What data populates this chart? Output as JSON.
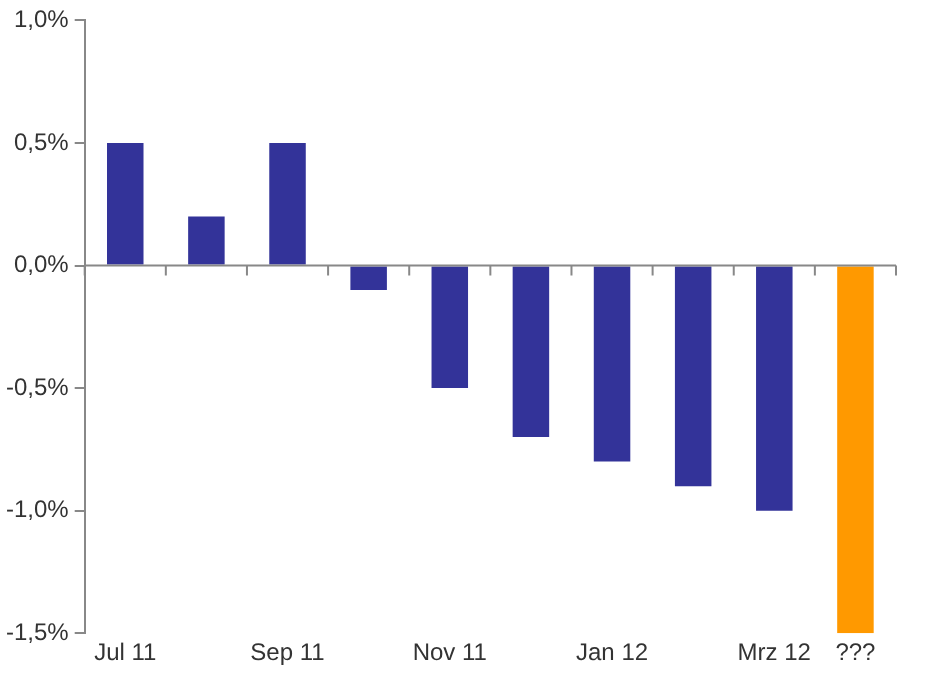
{
  "chart_data": {
    "type": "bar",
    "categories": [
      "Jul 11",
      null,
      "Sep 11",
      null,
      "Nov 11",
      null,
      "Jan 12",
      null,
      "Mrz 12",
      "???"
    ],
    "values": [
      0.5,
      0.2,
      0.5,
      -0.1,
      -0.5,
      -0.7,
      -0.8,
      -0.9,
      -1.0,
      -1.5
    ],
    "colors": [
      "#333399",
      "#333399",
      "#333399",
      "#333399",
      "#333399",
      "#333399",
      "#333399",
      "#333399",
      "#333399",
      "#ff9900"
    ],
    "ylim": [
      -1.5,
      1.0
    ],
    "yticks": [
      {
        "value": -1.5,
        "label": "-1,5%"
      },
      {
        "value": -1.0,
        "label": "-1,0%"
      },
      {
        "value": -0.5,
        "label": "-0,5%"
      },
      {
        "value": 0,
        "label": "0,0%"
      },
      {
        "value": 0.5,
        "label": "0,5%"
      },
      {
        "value": 1.0,
        "label": "1,0%"
      }
    ]
  }
}
